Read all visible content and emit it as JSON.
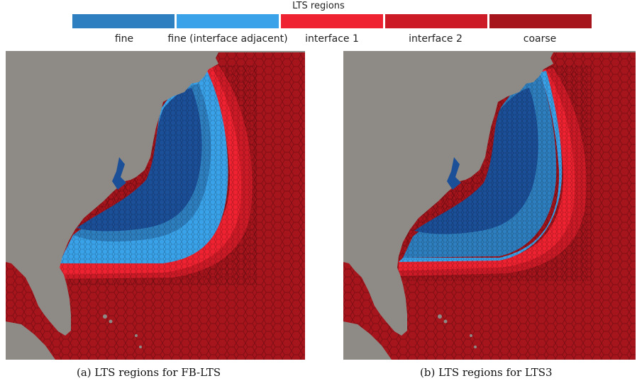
{
  "legend": {
    "title": "LTS regions",
    "entries": [
      {
        "label": "fine",
        "color": "#2e7fbf"
      },
      {
        "label": "fine (interface adjacent)",
        "color": "#3aa2e8"
      },
      {
        "label": "interface 1",
        "color": "#ee2230"
      },
      {
        "label": "interface 2",
        "color": "#cc1a26"
      },
      {
        "label": "coarse",
        "color": "#a6141c"
      }
    ]
  },
  "colors": {
    "land": "#8e8b86",
    "fine_deep": "#1b4f98",
    "fine": "#2e7fbf",
    "fine_adjacent": "#3aa2e8",
    "interface1": "#ee2230",
    "interface2": "#cc1a26",
    "coarse": "#a6141c"
  },
  "panels": [
    {
      "caption": "(a) LTS regions for FB-LTS"
    },
    {
      "caption": "(b) LTS regions for LTS3"
    }
  ]
}
